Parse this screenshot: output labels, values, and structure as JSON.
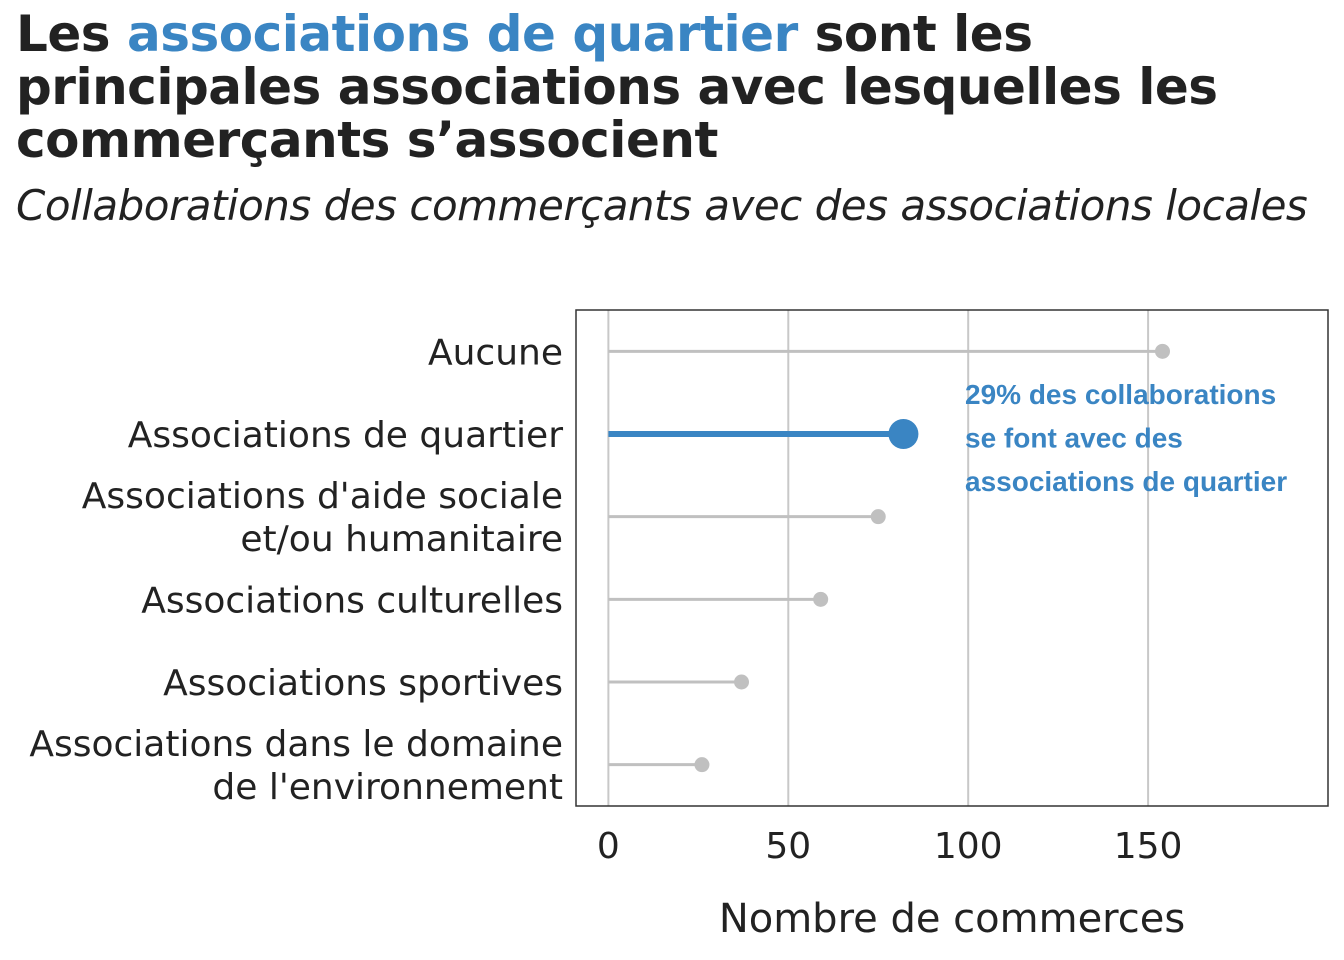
{
  "title": {
    "before": "Les ",
    "highlight": "associations de quartier",
    "after": " sont les principales associations avec lesquelles les commerçants s’associent"
  },
  "subtitle": "Collaborations des commerçants avec des associations locales",
  "colors": {
    "highlight": "#3a85c3",
    "muted": "#c0c0c0",
    "grid": "#c8c8c8",
    "text": "#222222"
  },
  "chart_data": {
    "type": "lollipop",
    "xlabel": "Nombre de commerces",
    "ylabel": "",
    "xlim": [
      -9,
      200
    ],
    "xticks": [
      0,
      50,
      100,
      150
    ],
    "grid": true,
    "categories": [
      {
        "label": [
          "Aucune"
        ],
        "value": 154,
        "highlight": false
      },
      {
        "label": [
          "Associations de quartier"
        ],
        "value": 82,
        "highlight": true
      },
      {
        "label": [
          "Associations d'aide sociale",
          "et/ou humanitaire"
        ],
        "value": 75,
        "highlight": false
      },
      {
        "label": [
          "Associations culturelles"
        ],
        "value": 59,
        "highlight": false
      },
      {
        "label": [
          "Associations sportives"
        ],
        "value": 37,
        "highlight": false
      },
      {
        "label": [
          "Associations dans le domaine",
          "de l'environnement"
        ],
        "value": 26,
        "highlight": false
      }
    ],
    "annotation": {
      "lines": [
        "29% des collaborations",
        "se font avec des",
        "associations de quartier"
      ]
    }
  }
}
